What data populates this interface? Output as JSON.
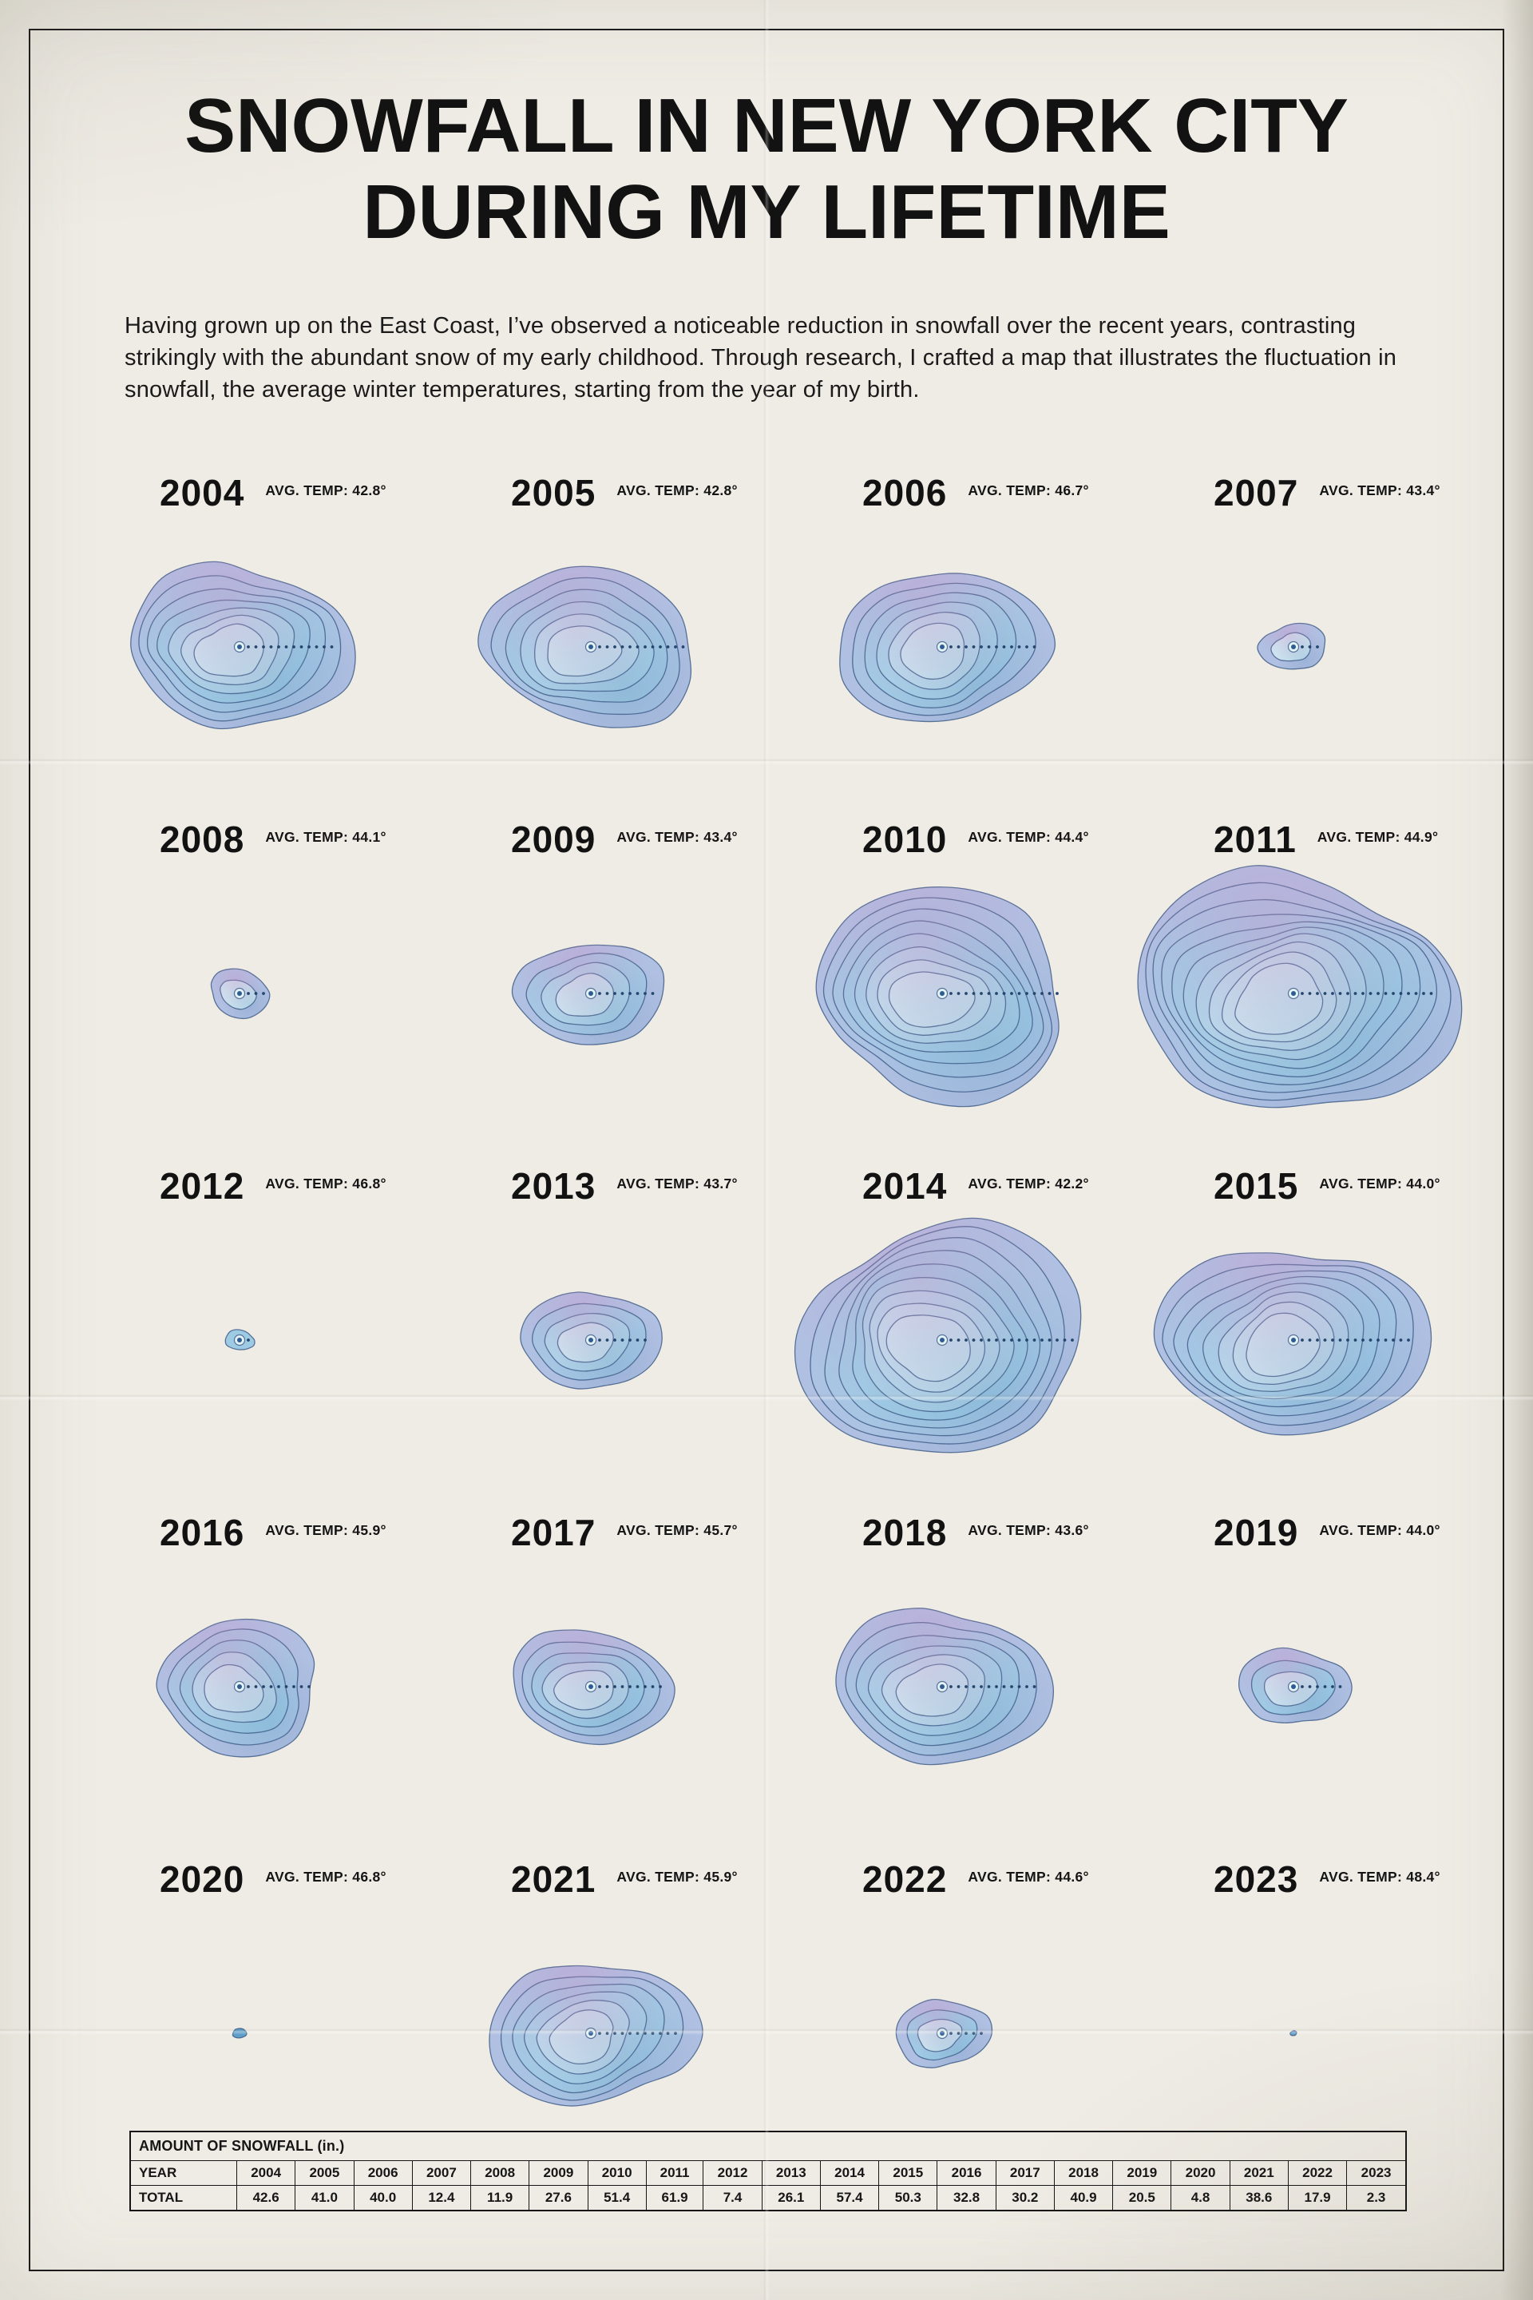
{
  "poster": {
    "title_line1": "SNOWFALL IN NEW YORK CITY",
    "title_line2": "DURING MY LIFETIME",
    "intro": "Having grown up on the East Coast, I’ve observed a noticeable reduction in snowfall over the recent years, contrasting strikingly with the abundant snow of my early childhood. Through research, I crafted a map that illustrates the fluctuation in snowfall, the average winter temperatures, starting from the year of my birth.",
    "avg_temp_prefix": "AVG. TEMP:"
  },
  "years": [
    {
      "label": "2004",
      "avg_temp": "42.8°",
      "snowfall": 42.6
    },
    {
      "label": "2005",
      "avg_temp": "42.8°",
      "snowfall": 41.0
    },
    {
      "label": "2006",
      "avg_temp": "46.7°",
      "snowfall": 40.0
    },
    {
      "label": "2007",
      "avg_temp": "43.4°",
      "snowfall": 12.4
    },
    {
      "label": "2008",
      "avg_temp": "44.1°",
      "snowfall": 11.9
    },
    {
      "label": "2009",
      "avg_temp": "43.4°",
      "snowfall": 27.6
    },
    {
      "label": "2010",
      "avg_temp": "44.4°",
      "snowfall": 51.4
    },
    {
      "label": "2011",
      "avg_temp": "44.9°",
      "snowfall": 61.9
    },
    {
      "label": "2012",
      "avg_temp": "46.8°",
      "snowfall": 7.4
    },
    {
      "label": "2013",
      "avg_temp": "43.7°",
      "snowfall": 26.1
    },
    {
      "label": "2014",
      "avg_temp": "42.2°",
      "snowfall": 57.4
    },
    {
      "label": "2015",
      "avg_temp": "44.0°",
      "snowfall": 50.3
    },
    {
      "label": "2016",
      "avg_temp": "45.9°",
      "snowfall": 32.8
    },
    {
      "label": "2017",
      "avg_temp": "45.7°",
      "snowfall": 30.2
    },
    {
      "label": "2018",
      "avg_temp": "43.6°",
      "snowfall": 40.9
    },
    {
      "label": "2019",
      "avg_temp": "44.0°",
      "snowfall": 20.5
    },
    {
      "label": "2020",
      "avg_temp": "46.8°",
      "snowfall": 4.8
    },
    {
      "label": "2021",
      "avg_temp": "45.9°",
      "snowfall": 38.6
    },
    {
      "label": "2022",
      "avg_temp": "44.6°",
      "snowfall": 17.9
    },
    {
      "label": "2023",
      "avg_temp": "48.4°",
      "snowfall": 2.3
    }
  ],
  "table": {
    "title": "AMOUNT OF SNOWFALL (in.)",
    "year_row_label": "YEAR",
    "total_row_label": "TOTAL"
  },
  "colors": {
    "paper": "#efece5",
    "ink": "#161616",
    "blob_outer": "#b0c0e2",
    "blob_mid": "#9fcbe5",
    "blob_inner": "#cde8f2",
    "blob_stroke": "#395682",
    "pink_tint": "#cf8ec6",
    "dot": "#2e5c92"
  },
  "chart_data": {
    "type": "table",
    "title": "Snowfall in New York City during my lifetime",
    "categories": [
      "2004",
      "2005",
      "2006",
      "2007",
      "2008",
      "2009",
      "2010",
      "2011",
      "2012",
      "2013",
      "2014",
      "2015",
      "2016",
      "2017",
      "2018",
      "2019",
      "2020",
      "2021",
      "2022",
      "2023"
    ],
    "series": [
      {
        "name": "Total snowfall (in.)",
        "values": [
          42.6,
          41.0,
          40.0,
          12.4,
          11.9,
          27.6,
          51.4,
          61.9,
          7.4,
          26.1,
          57.4,
          50.3,
          32.8,
          30.2,
          40.9,
          20.5,
          4.8,
          38.6,
          17.9,
          2.3
        ]
      },
      {
        "name": "Avg. winter temp (°F)",
        "values": [
          42.8,
          42.8,
          46.7,
          43.4,
          44.1,
          43.4,
          44.4,
          44.9,
          46.8,
          43.7,
          42.2,
          44.0,
          45.9,
          45.7,
          43.6,
          44.0,
          46.8,
          45.9,
          44.6,
          48.4
        ]
      }
    ],
    "encoding": "Contour-blob area encodes total snowfall per year; a dotted radius line marks blob extent",
    "legend_position": "none",
    "grid": false
  }
}
